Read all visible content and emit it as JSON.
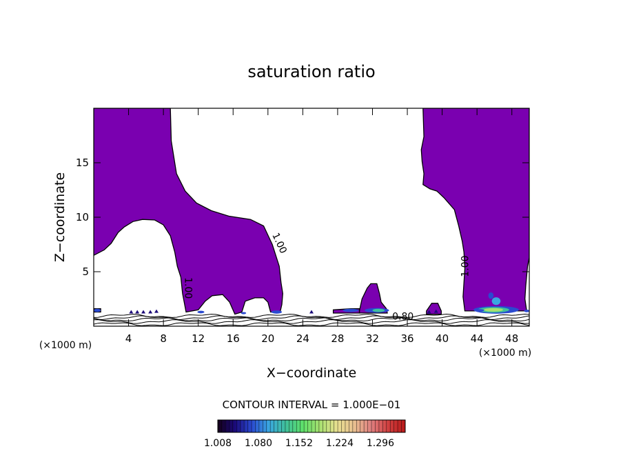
{
  "chart_data": {
    "type": "contour",
    "title": "saturation ratio",
    "xlabel": "X−coordinate",
    "ylabel": "Z−coordinate",
    "x_unit_left": "(×1000 m)",
    "x_unit_right": "(×1000 m)",
    "xlim": [
      0,
      50
    ],
    "ylim": [
      0,
      20
    ],
    "x_ticks": [
      4,
      8,
      12,
      16,
      20,
      24,
      28,
      32,
      36,
      40,
      44,
      48
    ],
    "y_ticks": [
      5,
      10,
      15
    ],
    "contour_labels": [
      {
        "text": "1.00",
        "x": 21.0,
        "y": 7.5
      },
      {
        "text": "1.00",
        "x": 10.5,
        "y": 3.5
      },
      {
        "text": "1.00",
        "x": 43.0,
        "y": 5.5
      },
      {
        "text": "0.80",
        "x": 35.5,
        "y": 0.6
      }
    ],
    "contour_interval_text": "CONTOUR INTERVAL = 1.000E−01",
    "colorbar": {
      "min": 1.008,
      "max": 1.34,
      "tick_labels": [
        "1.008",
        "1.080",
        "1.152",
        "1.224",
        "1.296"
      ],
      "colors": [
        "#150018",
        "#1b0a7a",
        "#2a4ad0",
        "#3aa7e0",
        "#40c09a",
        "#5ee06a",
        "#a8e070",
        "#e8e090",
        "#e8c090",
        "#e08080",
        "#d04040",
        "#b81818"
      ]
    },
    "fill_color": "#7a00b0",
    "supersaturated_regions": [
      {
        "name": "left-column",
        "outline": [
          [
            0,
            20
          ],
          [
            8.8,
            20
          ],
          [
            8.9,
            17
          ],
          [
            9.5,
            14
          ],
          [
            10.5,
            12.4
          ],
          [
            11.8,
            11.3
          ],
          [
            13.5,
            10.6
          ],
          [
            15.5,
            10.1
          ],
          [
            18,
            9.8
          ],
          [
            19.5,
            9.2
          ],
          [
            20.5,
            7.5
          ],
          [
            21.3,
            5.5
          ],
          [
            21.5,
            4
          ],
          [
            21.7,
            3
          ],
          [
            21.6,
            2
          ],
          [
            21.4,
            1.3
          ],
          [
            20.3,
            1.3
          ],
          [
            20,
            2.2
          ],
          [
            19.5,
            2.6
          ],
          [
            18.5,
            2.6
          ],
          [
            17.4,
            2.3
          ],
          [
            17,
            1.3
          ],
          [
            16.2,
            1.1
          ],
          [
            15.6,
            2.2
          ],
          [
            14.8,
            2.9
          ],
          [
            13.6,
            2.8
          ],
          [
            12.8,
            2.3
          ],
          [
            12,
            1.5
          ],
          [
            10.6,
            1.3
          ],
          [
            10.2,
            3
          ],
          [
            10,
            4.5
          ],
          [
            9.6,
            5.5
          ],
          [
            9.3,
            6.8
          ],
          [
            8.8,
            8.3
          ],
          [
            8,
            9.3
          ],
          [
            7,
            9.75
          ],
          [
            5.6,
            9.8
          ],
          [
            4.5,
            9.6
          ],
          [
            3.5,
            9.1
          ],
          [
            2.8,
            8.6
          ],
          [
            2,
            7.6
          ],
          [
            1.2,
            7
          ],
          [
            0,
            6.5
          ]
        ]
      },
      {
        "name": "right-column",
        "outline": [
          [
            37.8,
            20
          ],
          [
            50,
            20
          ],
          [
            50,
            6.3
          ],
          [
            49.8,
            5.5
          ],
          [
            49.6,
            3.7
          ],
          [
            49.5,
            2.5
          ],
          [
            49.7,
            1.4
          ],
          [
            42.6,
            1.4
          ],
          [
            42.4,
            2.7
          ],
          [
            42.6,
            5.3
          ],
          [
            42.5,
            6.8
          ],
          [
            42.3,
            7.8
          ],
          [
            41.9,
            9.2
          ],
          [
            41.4,
            10.7
          ],
          [
            40.2,
            11.8
          ],
          [
            39.4,
            12.4
          ],
          [
            38.6,
            12.6
          ],
          [
            37.8,
            13
          ],
          [
            37.9,
            14
          ],
          [
            37.7,
            15.1
          ],
          [
            37.6,
            16.2
          ],
          [
            37.9,
            17.4
          ],
          [
            37.8,
            20
          ]
        ]
      },
      {
        "name": "central-bump",
        "outline": [
          [
            30.5,
            1.4
          ],
          [
            30.8,
            2.5
          ],
          [
            31.4,
            3.5
          ],
          [
            31.8,
            3.9
          ],
          [
            32.5,
            3.9
          ],
          [
            32.8,
            3
          ],
          [
            33,
            2.2
          ],
          [
            33.6,
            1.6
          ],
          [
            33.7,
            1.2
          ],
          [
            30.5,
            1.2
          ]
        ]
      },
      {
        "name": "left-ground-patch",
        "outline": [
          [
            0,
            1.6
          ],
          [
            0.8,
            1.6
          ],
          [
            0.8,
            1.3
          ],
          [
            0,
            1.3
          ]
        ]
      },
      {
        "name": "mid-ground-strip",
        "outline": [
          [
            27.5,
            1.5
          ],
          [
            29.5,
            1.6
          ],
          [
            30.5,
            1.6
          ],
          [
            30.5,
            1.2
          ],
          [
            27.5,
            1.2
          ]
        ]
      },
      {
        "name": "right-ground-patch",
        "outline": [
          [
            38.2,
            1.4
          ],
          [
            38.8,
            2.1
          ],
          [
            39.5,
            2.1
          ],
          [
            39.9,
            1.4
          ],
          [
            39.9,
            1.1
          ],
          [
            38.2,
            1.1
          ]
        ]
      }
    ]
  }
}
